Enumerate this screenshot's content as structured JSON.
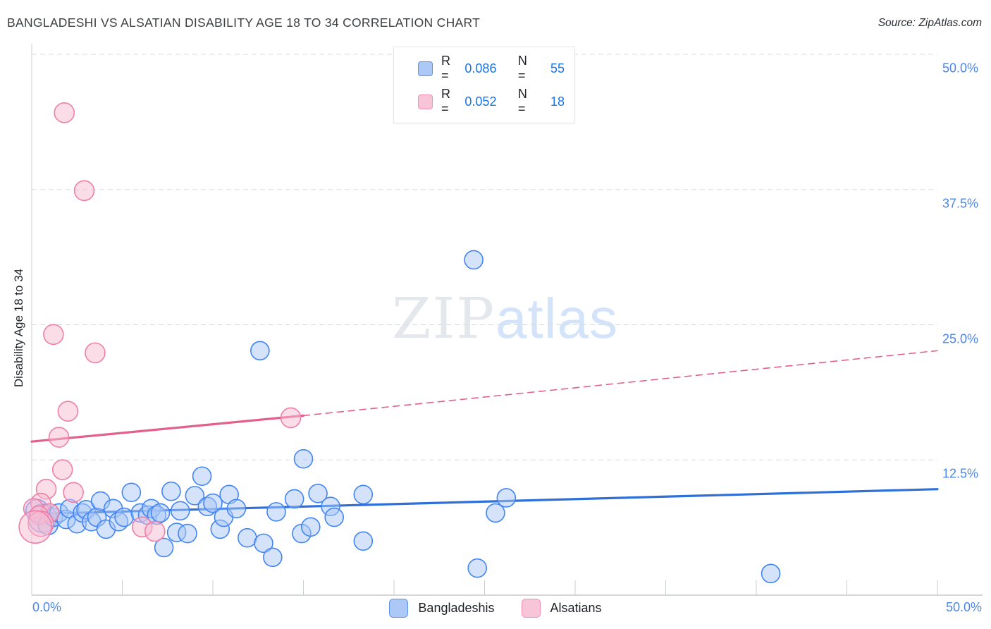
{
  "header": {
    "title": "BANGLADESHI VS ALSATIAN DISABILITY AGE 18 TO 34 CORRELATION CHART",
    "source": "Source: ZipAtlas.com"
  },
  "watermark": {
    "zip": "ZIP",
    "atlas": "atlas"
  },
  "legend_box": {
    "rows": [
      {
        "series": "Bangladeshis",
        "r_label": "R =",
        "r_value": "0.086",
        "n_label": "N =",
        "n_value": "55"
      },
      {
        "series": "Alsatians",
        "r_label": "R =",
        "r_value": "0.052",
        "n_label": "N =",
        "n_value": "18"
      }
    ]
  },
  "bottom_legend": [
    {
      "label": "Bangladeshis",
      "color": "#abc8f7"
    },
    {
      "label": "Alsatians",
      "color": "#f8c4d8"
    }
  ],
  "colors": {
    "blue_fill": "#a9c7f5",
    "blue_stroke": "#4285f4",
    "blue_trend": "#2e6fd8",
    "pink_fill": "#f7bcd2",
    "pink_stroke": "#ef7fa7",
    "pink_trend": "#e2608e",
    "gridline": "#d8dbe0",
    "axis_line": "#c9ccd1",
    "tick_label": "#4b86e8"
  },
  "chart_data": {
    "type": "scatter",
    "title": "BANGLADESHI VS ALSATIAN DISABILITY AGE 18 TO 34 CORRELATION CHART",
    "xlabel": "",
    "ylabel": "Disability Age 18 to 34",
    "xlim": [
      0,
      50
    ],
    "ylim": [
      0,
      50
    ],
    "x_axis": {
      "min_label": "0.0%",
      "max_label": "50.0%",
      "tick_step_percent": 5
    },
    "y_axis": {
      "gridline_values": [
        50,
        37.5,
        25,
        12.5
      ],
      "tick_labels": [
        "50.0%",
        "37.5%",
        "25.0%",
        "12.5%"
      ],
      "grid": "dashed"
    },
    "legend_position": "top-center",
    "series": [
      {
        "name": "Bangladeshis",
        "R": 0.086,
        "N": 55,
        "points": [
          [
            0.3,
            7.8,
            16
          ],
          [
            0.6,
            7.1,
            20
          ],
          [
            0.9,
            6.5,
            14
          ],
          [
            1.2,
            7.2,
            13
          ],
          [
            1.5,
            7.6,
            13
          ],
          [
            1.9,
            7.0,
            13
          ],
          [
            2.1,
            8.0,
            13
          ],
          [
            2.5,
            6.6,
            13
          ],
          [
            2.8,
            7.6,
            13
          ],
          [
            3.0,
            7.9,
            13
          ],
          [
            3.3,
            6.8,
            13
          ],
          [
            3.6,
            7.2,
            13
          ],
          [
            3.8,
            8.7,
            13
          ],
          [
            4.1,
            6.1,
            13
          ],
          [
            4.5,
            8.0,
            13
          ],
          [
            4.8,
            6.8,
            13
          ],
          [
            5.1,
            7.2,
            13
          ],
          [
            5.5,
            9.5,
            13
          ],
          [
            6.0,
            7.6,
            13
          ],
          [
            6.4,
            7.4,
            13
          ],
          [
            6.6,
            8.0,
            13
          ],
          [
            6.9,
            7.4,
            13
          ],
          [
            7.1,
            7.6,
            13
          ],
          [
            7.3,
            4.4,
            13
          ],
          [
            7.7,
            9.6,
            13
          ],
          [
            8.0,
            5.8,
            13
          ],
          [
            8.2,
            7.8,
            13
          ],
          [
            8.6,
            5.7,
            13
          ],
          [
            9.0,
            9.2,
            13
          ],
          [
            9.4,
            11.0,
            13
          ],
          [
            9.7,
            8.2,
            13
          ],
          [
            10.0,
            8.5,
            13
          ],
          [
            10.4,
            6.1,
            13
          ],
          [
            10.6,
            7.2,
            13
          ],
          [
            10.9,
            9.3,
            13
          ],
          [
            11.3,
            8.0,
            13
          ],
          [
            11.9,
            5.3,
            13
          ],
          [
            12.6,
            22.6,
            13
          ],
          [
            12.8,
            4.8,
            13
          ],
          [
            13.3,
            3.5,
            13
          ],
          [
            13.5,
            7.7,
            13
          ],
          [
            14.5,
            8.9,
            13
          ],
          [
            14.9,
            5.7,
            13
          ],
          [
            15.0,
            12.6,
            13
          ],
          [
            15.4,
            6.3,
            13
          ],
          [
            15.8,
            9.4,
            13
          ],
          [
            16.5,
            8.2,
            13
          ],
          [
            16.7,
            7.2,
            13
          ],
          [
            18.3,
            9.3,
            13
          ],
          [
            18.3,
            5.0,
            13
          ],
          [
            24.4,
            31.0,
            13
          ],
          [
            24.6,
            2.5,
            13
          ],
          [
            25.6,
            7.6,
            13
          ],
          [
            26.2,
            9.0,
            13
          ],
          [
            40.8,
            2.0,
            13
          ]
        ]
      },
      {
        "name": "Alsatians",
        "R": 0.052,
        "N": 18,
        "points": [
          [
            1.8,
            44.6,
            14
          ],
          [
            2.9,
            37.4,
            14
          ],
          [
            1.2,
            24.1,
            14
          ],
          [
            3.5,
            22.4,
            14
          ],
          [
            2.0,
            17.0,
            14
          ],
          [
            1.5,
            14.6,
            14
          ],
          [
            14.3,
            16.4,
            14
          ],
          [
            1.7,
            11.6,
            14
          ],
          [
            0.8,
            9.8,
            14
          ],
          [
            2.3,
            9.5,
            14
          ],
          [
            0.5,
            8.5,
            14
          ],
          [
            0.1,
            8.0,
            14
          ],
          [
            1.0,
            7.6,
            13
          ],
          [
            0.4,
            7.4,
            13
          ],
          [
            0.5,
            6.6,
            18
          ],
          [
            0.2,
            6.3,
            23
          ],
          [
            6.1,
            6.3,
            14
          ],
          [
            6.8,
            5.9,
            14
          ]
        ]
      }
    ],
    "trendlines": [
      {
        "series": "Bangladeshis",
        "x1": 0,
        "y1": 7.5,
        "x2": 50,
        "y2": 9.8,
        "style": "solid"
      },
      {
        "series": "Alsatians",
        "x1": 0,
        "y1": 14.2,
        "x2": 15,
        "y2": 16.6,
        "style": "solid"
      },
      {
        "series": "Alsatians",
        "x1": 15,
        "y1": 16.6,
        "x2": 50,
        "y2": 22.6,
        "style": "dashed"
      }
    ]
  }
}
